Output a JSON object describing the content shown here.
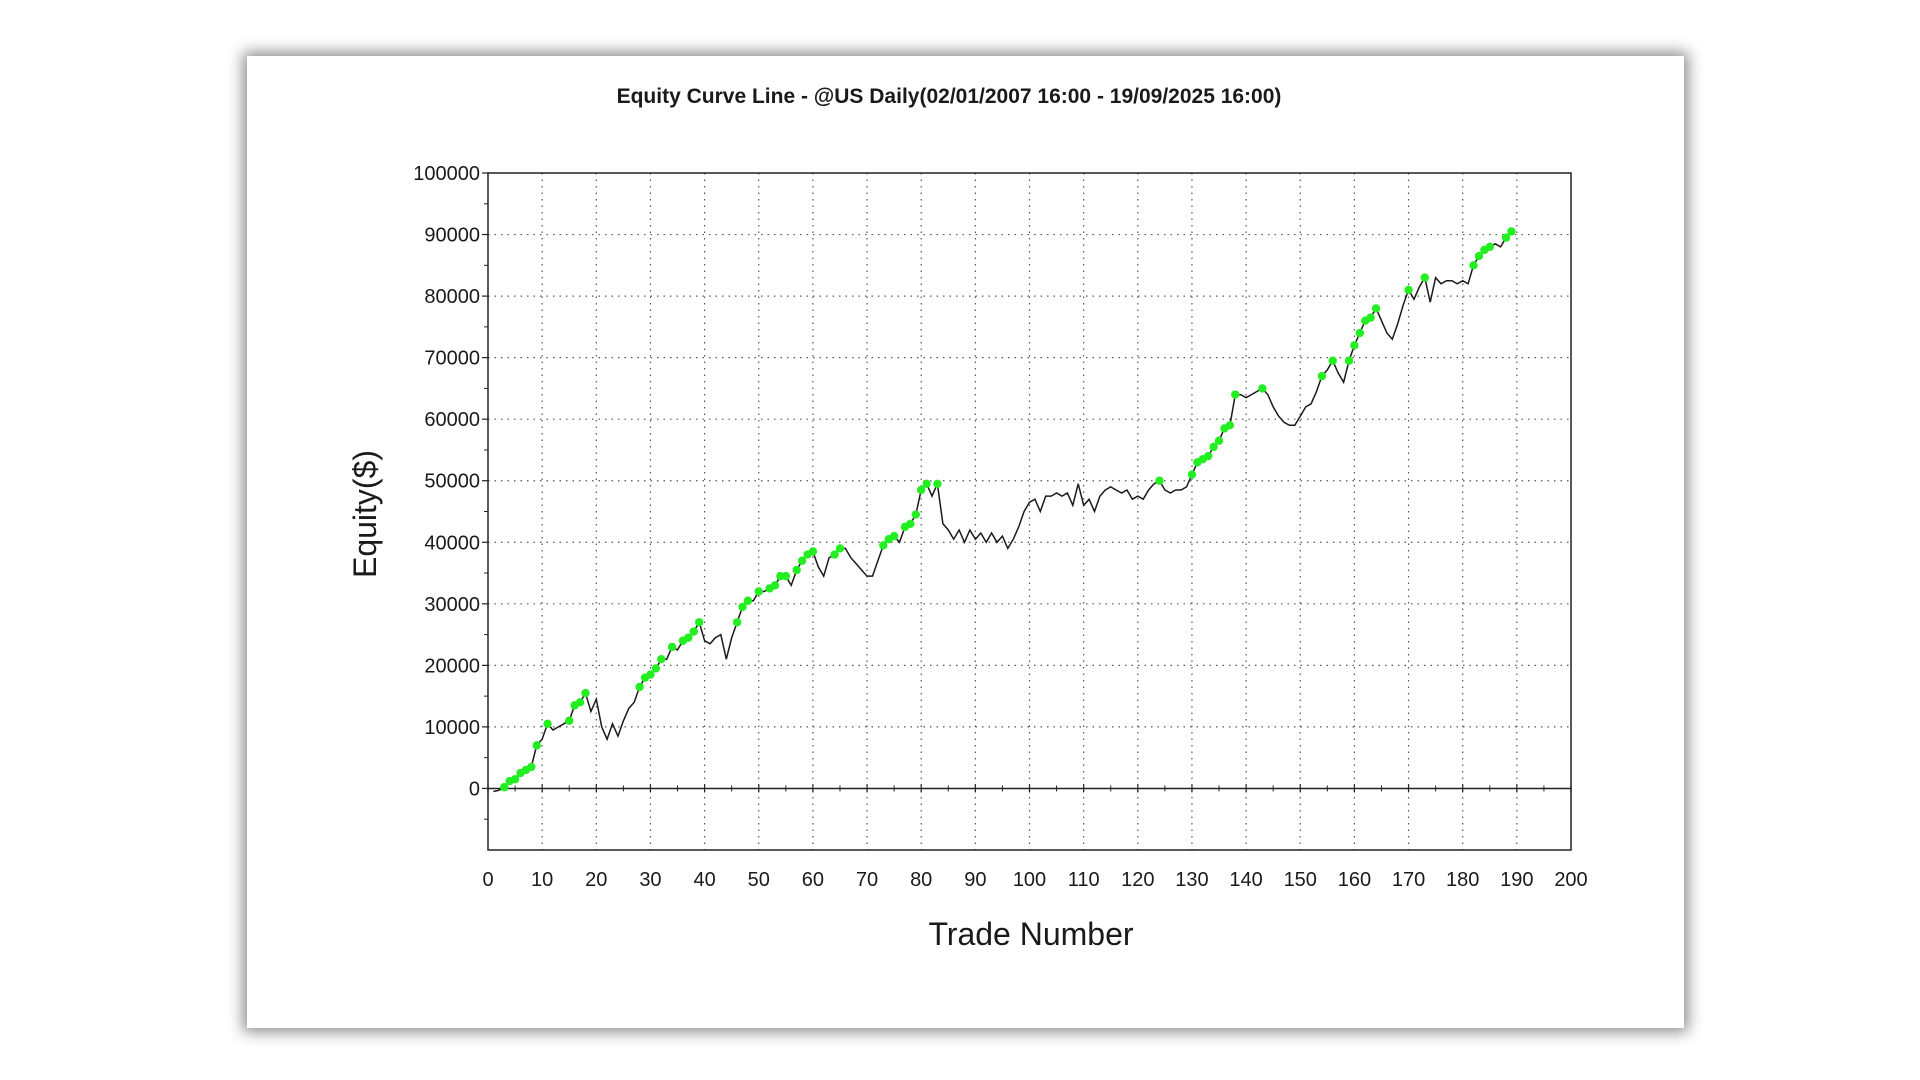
{
  "chart_data": {
    "type": "line",
    "title": "Equity Curve Line - @US Daily(02/01/2007 16:00 - 19/09/2025 16:00)",
    "xlabel": "Trade Number",
    "ylabel": "Equity($)",
    "xlim": [
      0,
      200
    ],
    "ylim": [
      -10000,
      100000
    ],
    "x_ticks": [
      0,
      10,
      20,
      30,
      40,
      50,
      60,
      70,
      80,
      90,
      100,
      110,
      120,
      130,
      140,
      150,
      160,
      170,
      180,
      190,
      200
    ],
    "y_ticks": [
      0,
      10000,
      20000,
      30000,
      40000,
      50000,
      60000,
      70000,
      80000,
      90000,
      100000
    ],
    "grid": true,
    "line_color": "#1a1a1a",
    "marker_color": "#22ee22",
    "series": [
      {
        "points": [
          [
            1,
            -500
          ],
          [
            2,
            -300
          ],
          [
            3,
            200
          ],
          [
            4,
            1200
          ],
          [
            5,
            1500
          ],
          [
            6,
            2500
          ],
          [
            7,
            3000
          ],
          [
            8,
            3500
          ],
          [
            9,
            7000
          ],
          [
            10,
            8000
          ],
          [
            11,
            10500
          ],
          [
            12,
            9500
          ],
          [
            13,
            10000
          ],
          [
            14,
            10500
          ],
          [
            15,
            11000
          ],
          [
            16,
            13500
          ],
          [
            17,
            14000
          ],
          [
            18,
            15500
          ],
          [
            19,
            12500
          ],
          [
            20,
            14500
          ],
          [
            21,
            10000
          ],
          [
            22,
            8000
          ],
          [
            23,
            10500
          ],
          [
            24,
            8500
          ],
          [
            25,
            11000
          ],
          [
            26,
            13000
          ],
          [
            27,
            14000
          ],
          [
            28,
            16500
          ],
          [
            29,
            18000
          ],
          [
            30,
            18500
          ],
          [
            31,
            19500
          ],
          [
            32,
            21000
          ],
          [
            33,
            21000
          ],
          [
            34,
            23000
          ],
          [
            35,
            22500
          ],
          [
            36,
            24000
          ],
          [
            37,
            24500
          ],
          [
            38,
            25500
          ],
          [
            39,
            27000
          ],
          [
            40,
            24000
          ],
          [
            41,
            23500
          ],
          [
            42,
            24500
          ],
          [
            43,
            25000
          ],
          [
            44,
            21000
          ],
          [
            45,
            24500
          ],
          [
            46,
            27000
          ],
          [
            47,
            29500
          ],
          [
            48,
            30500
          ],
          [
            49,
            30500
          ],
          [
            50,
            32000
          ],
          [
            51,
            32000
          ],
          [
            52,
            32500
          ],
          [
            53,
            33000
          ],
          [
            54,
            34500
          ],
          [
            55,
            34500
          ],
          [
            56,
            33000
          ],
          [
            57,
            35500
          ],
          [
            58,
            37000
          ],
          [
            59,
            38000
          ],
          [
            60,
            38500
          ],
          [
            61,
            36000
          ],
          [
            62,
            34500
          ],
          [
            63,
            37500
          ],
          [
            64,
            38000
          ],
          [
            65,
            39000
          ],
          [
            66,
            39000
          ],
          [
            67,
            37500
          ],
          [
            68,
            36500
          ],
          [
            69,
            35500
          ],
          [
            70,
            34500
          ],
          [
            71,
            34500
          ],
          [
            72,
            37000
          ],
          [
            73,
            39500
          ],
          [
            74,
            40500
          ],
          [
            75,
            41000
          ],
          [
            76,
            40000
          ],
          [
            77,
            42500
          ],
          [
            78,
            43000
          ],
          [
            79,
            44500
          ],
          [
            80,
            48500
          ],
          [
            81,
            49500
          ],
          [
            82,
            47500
          ],
          [
            83,
            49500
          ],
          [
            84,
            43000
          ],
          [
            85,
            42000
          ],
          [
            86,
            40500
          ],
          [
            87,
            42000
          ],
          [
            88,
            40000
          ],
          [
            89,
            42000
          ],
          [
            90,
            40500
          ],
          [
            91,
            41500
          ],
          [
            92,
            40000
          ],
          [
            93,
            41500
          ],
          [
            94,
            40000
          ],
          [
            95,
            41000
          ],
          [
            96,
            39000
          ],
          [
            97,
            40500
          ],
          [
            98,
            42500
          ],
          [
            99,
            45000
          ],
          [
            100,
            46500
          ],
          [
            101,
            47000
          ],
          [
            102,
            45000
          ],
          [
            103,
            47500
          ],
          [
            104,
            47500
          ],
          [
            105,
            48000
          ],
          [
            106,
            47500
          ],
          [
            107,
            48000
          ],
          [
            108,
            46000
          ],
          [
            109,
            49500
          ],
          [
            110,
            46000
          ],
          [
            111,
            47000
          ],
          [
            112,
            45000
          ],
          [
            113,
            47500
          ],
          [
            114,
            48500
          ],
          [
            115,
            49000
          ],
          [
            116,
            48500
          ],
          [
            117,
            48000
          ],
          [
            118,
            48500
          ],
          [
            119,
            47000
          ],
          [
            120,
            47500
          ],
          [
            121,
            47000
          ],
          [
            122,
            48500
          ],
          [
            123,
            49500
          ],
          [
            124,
            50000
          ],
          [
            125,
            48500
          ],
          [
            126,
            48000
          ],
          [
            127,
            48500
          ],
          [
            128,
            48500
          ],
          [
            129,
            49000
          ],
          [
            130,
            51000
          ],
          [
            131,
            53000
          ],
          [
            132,
            53500
          ],
          [
            133,
            54000
          ],
          [
            134,
            55500
          ],
          [
            135,
            56500
          ],
          [
            136,
            58500
          ],
          [
            137,
            59000
          ],
          [
            138,
            64000
          ],
          [
            139,
            64000
          ],
          [
            140,
            63500
          ],
          [
            141,
            64000
          ],
          [
            142,
            64500
          ],
          [
            143,
            65000
          ],
          [
            144,
            64000
          ],
          [
            145,
            62000
          ],
          [
            146,
            60500
          ],
          [
            147,
            59500
          ],
          [
            148,
            59000
          ],
          [
            149,
            59000
          ],
          [
            150,
            60500
          ],
          [
            151,
            62000
          ],
          [
            152,
            62500
          ],
          [
            153,
            64500
          ],
          [
            154,
            67000
          ],
          [
            155,
            68000
          ],
          [
            156,
            69500
          ],
          [
            157,
            67500
          ],
          [
            158,
            66000
          ],
          [
            159,
            69500
          ],
          [
            160,
            72000
          ],
          [
            161,
            74000
          ],
          [
            162,
            76000
          ],
          [
            163,
            76500
          ],
          [
            164,
            78000
          ],
          [
            165,
            76000
          ],
          [
            166,
            74000
          ],
          [
            167,
            73000
          ],
          [
            168,
            75500
          ],
          [
            169,
            78500
          ],
          [
            170,
            81000
          ],
          [
            171,
            79500
          ],
          [
            172,
            81500
          ],
          [
            173,
            83000
          ],
          [
            174,
            79000
          ],
          [
            175,
            83000
          ],
          [
            176,
            82000
          ],
          [
            177,
            82500
          ],
          [
            178,
            82500
          ],
          [
            179,
            82000
          ],
          [
            180,
            82500
          ],
          [
            181,
            82000
          ],
          [
            182,
            85000
          ],
          [
            183,
            86500
          ],
          [
            184,
            87500
          ],
          [
            185,
            88000
          ],
          [
            186,
            88500
          ],
          [
            187,
            88000
          ],
          [
            188,
            89500
          ],
          [
            189,
            90500
          ]
        ],
        "markers": [
          [
            3,
            200
          ],
          [
            4,
            1200
          ],
          [
            5,
            1500
          ],
          [
            6,
            2500
          ],
          [
            7,
            3000
          ],
          [
            8,
            3500
          ],
          [
            9,
            7000
          ],
          [
            11,
            10500
          ],
          [
            15,
            11000
          ],
          [
            16,
            13500
          ],
          [
            17,
            14000
          ],
          [
            18,
            15500
          ],
          [
            28,
            16500
          ],
          [
            29,
            18000
          ],
          [
            30,
            18500
          ],
          [
            31,
            19500
          ],
          [
            32,
            21000
          ],
          [
            34,
            23000
          ],
          [
            36,
            24000
          ],
          [
            37,
            24500
          ],
          [
            38,
            25500
          ],
          [
            39,
            27000
          ],
          [
            46,
            27000
          ],
          [
            47,
            29500
          ],
          [
            48,
            30500
          ],
          [
            50,
            32000
          ],
          [
            52,
            32500
          ],
          [
            53,
            33000
          ],
          [
            54,
            34500
          ],
          [
            55,
            34500
          ],
          [
            57,
            35500
          ],
          [
            58,
            37000
          ],
          [
            59,
            38000
          ],
          [
            60,
            38500
          ],
          [
            64,
            38000
          ],
          [
            65,
            39000
          ],
          [
            73,
            39500
          ],
          [
            74,
            40500
          ],
          [
            75,
            41000
          ],
          [
            77,
            42500
          ],
          [
            78,
            43000
          ],
          [
            79,
            44500
          ],
          [
            80,
            48500
          ],
          [
            81,
            49500
          ],
          [
            83,
            49500
          ],
          [
            124,
            50000
          ],
          [
            130,
            51000
          ],
          [
            131,
            53000
          ],
          [
            132,
            53500
          ],
          [
            133,
            54000
          ],
          [
            134,
            55500
          ],
          [
            135,
            56500
          ],
          [
            136,
            58500
          ],
          [
            137,
            59000
          ],
          [
            138,
            64000
          ],
          [
            143,
            65000
          ],
          [
            154,
            67000
          ],
          [
            156,
            69500
          ],
          [
            159,
            69500
          ],
          [
            160,
            72000
          ],
          [
            161,
            74000
          ],
          [
            162,
            76000
          ],
          [
            163,
            76500
          ],
          [
            164,
            78000
          ],
          [
            170,
            81000
          ],
          [
            173,
            83000
          ],
          [
            182,
            85000
          ],
          [
            183,
            86500
          ],
          [
            184,
            87500
          ],
          [
            185,
            88000
          ],
          [
            188,
            89500
          ],
          [
            189,
            90500
          ]
        ]
      }
    ]
  }
}
